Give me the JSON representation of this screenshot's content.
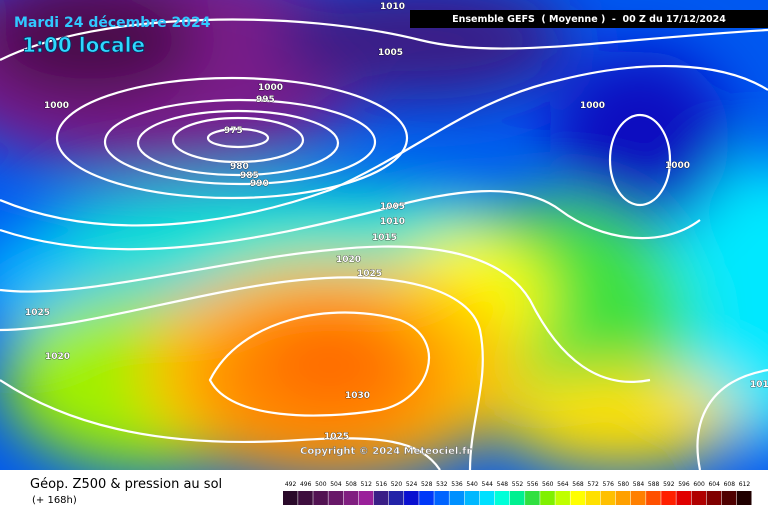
{
  "map": {
    "date": "Mardi 24 décembre 2024",
    "time": "1:00 locale",
    "header": "Ensemble GEFS  ( Moyenne )  -  00 Z du 17/12/2024",
    "copyright": "Copyright © 2024 Meteociel.fr",
    "footer_title": "Géop. Z500 & pression au sol",
    "footer_subtitle": "(+ 168h)",
    "isobar_labels": [
      "1010",
      "1005",
      "1000",
      "995",
      "1000",
      "975",
      "980",
      "985",
      "990",
      "1000",
      "1000",
      "1005",
      "1010",
      "1015",
      "1020",
      "1025",
      "1025",
      "1020",
      "1030",
      "1025",
      "101"
    ],
    "colorbar": {
      "values": [
        492,
        496,
        500,
        504,
        508,
        512,
        516,
        520,
        524,
        528,
        532,
        536,
        540,
        544,
        548,
        552,
        556,
        560,
        564,
        568,
        572,
        576,
        580,
        584,
        588,
        592,
        596,
        600,
        604,
        608,
        612
      ],
      "colors": [
        "#2a0a2a",
        "#3e0e3e",
        "#521252",
        "#681868",
        "#801e80",
        "#9a209a",
        "#3a1e86",
        "#2222a8",
        "#0a10d0",
        "#0038f8",
        "#0064ff",
        "#0090ff",
        "#00b8ff",
        "#00e0ff",
        "#00ffd8",
        "#00f090",
        "#30e040",
        "#80f000",
        "#c0ff00",
        "#ffff00",
        "#ffe000",
        "#ffc000",
        "#ffa000",
        "#ff8000",
        "#ff5000",
        "#ff2000",
        "#e00000",
        "#b00000",
        "#800000",
        "#500000",
        "#200000"
      ]
    }
  }
}
